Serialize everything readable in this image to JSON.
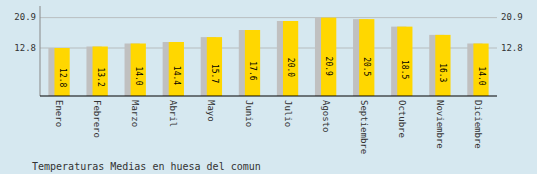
{
  "chart_data": {
    "type": "bar",
    "title": "Temperaturas Medias en huesa del comun",
    "categories": [
      "Enero",
      "Febrero",
      "Marzo",
      "Abril",
      "Mayo",
      "Junio",
      "Julio",
      "Agosto",
      "Septiembre",
      "Octubre",
      "Noviembre",
      "Diciembre"
    ],
    "values": [
      12.8,
      13.2,
      14.0,
      14.4,
      15.7,
      17.6,
      20.0,
      20.9,
      20.5,
      18.5,
      16.3,
      14.0
    ],
    "color": "#FFD700",
    "ylim": [
      0.0,
      24.0
    ],
    "yticks": [
      12.8,
      20.9
    ],
    "grid": true,
    "data_labels": true
  }
}
